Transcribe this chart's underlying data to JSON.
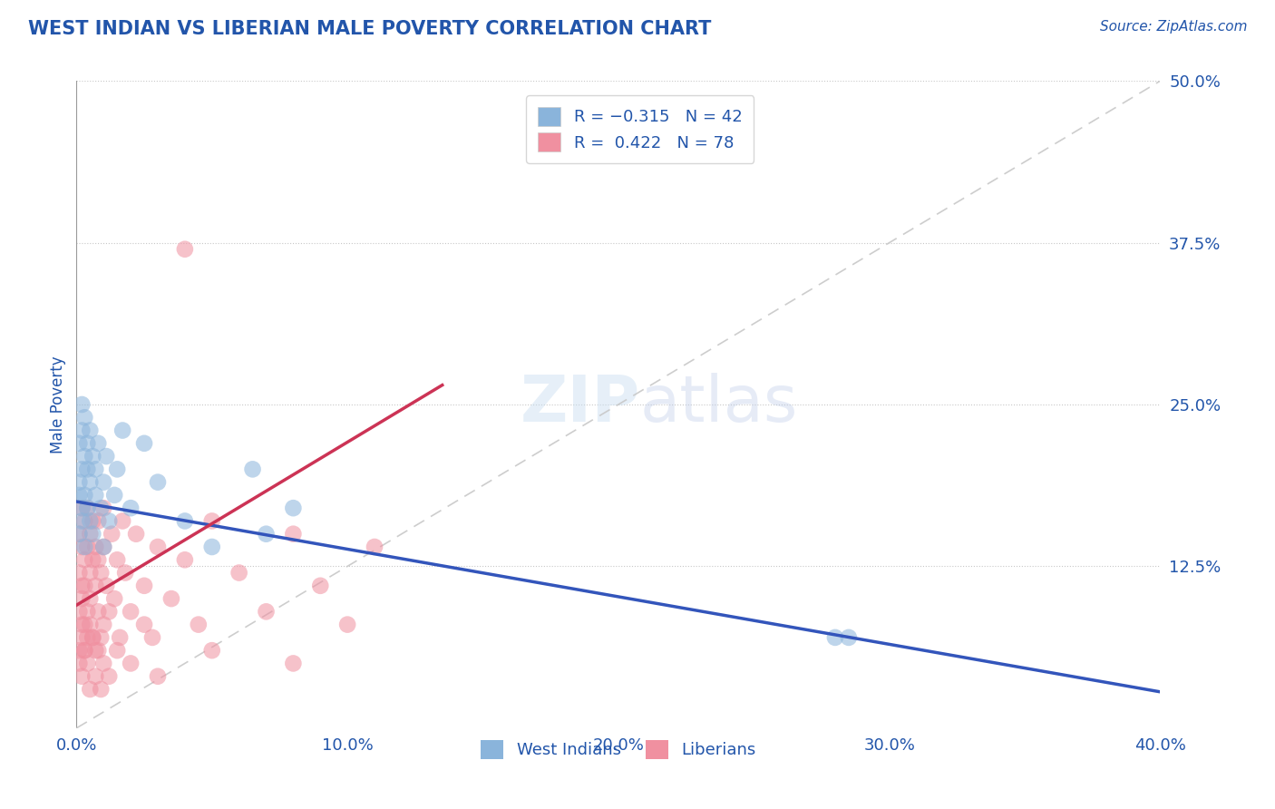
{
  "title": "WEST INDIAN VS LIBERIAN MALE POVERTY CORRELATION CHART",
  "source": "Source: ZipAtlas.com",
  "ylabel": "Male Poverty",
  "xlim": [
    0.0,
    0.4
  ],
  "ylim": [
    0.0,
    0.5
  ],
  "xticks": [
    0.0,
    0.1,
    0.2,
    0.3,
    0.4
  ],
  "xticklabels": [
    "0.0%",
    "10.0%",
    "20.0%",
    "30.0%",
    "40.0%"
  ],
  "yticks": [
    0.0,
    0.125,
    0.25,
    0.375,
    0.5
  ],
  "yticklabels": [
    "",
    "12.5%",
    "25.0%",
    "37.5%",
    "50.0%"
  ],
  "west_indian_color": "#8ab4db",
  "liberian_color": "#f090a0",
  "west_indian_line_color": "#3355bb",
  "liberian_line_color": "#cc3355",
  "ref_line_color": "#c8c8c8",
  "background_color": "#ffffff",
  "grid_color": "#c8c8c8",
  "title_color": "#2255aa",
  "axis_color": "#2255aa",
  "wi_line_x0": 0.0,
  "wi_line_y0": 0.175,
  "wi_line_x1": 0.4,
  "wi_line_y1": 0.028,
  "lib_line_x0": 0.0,
  "lib_line_y0": 0.095,
  "lib_line_x1": 0.135,
  "lib_line_y1": 0.265,
  "west_indians_x": [
    0.001,
    0.001,
    0.001,
    0.001,
    0.002,
    0.002,
    0.002,
    0.002,
    0.002,
    0.003,
    0.003,
    0.003,
    0.003,
    0.004,
    0.004,
    0.004,
    0.005,
    0.005,
    0.005,
    0.006,
    0.006,
    0.007,
    0.007,
    0.008,
    0.009,
    0.01,
    0.01,
    0.011,
    0.012,
    0.014,
    0.015,
    0.017,
    0.02,
    0.025,
    0.03,
    0.04,
    0.05,
    0.065,
    0.28,
    0.285,
    0.07,
    0.08
  ],
  "west_indians_y": [
    0.18,
    0.15,
    0.22,
    0.19,
    0.17,
    0.2,
    0.23,
    0.16,
    0.25,
    0.21,
    0.18,
    0.24,
    0.14,
    0.2,
    0.17,
    0.22,
    0.19,
    0.23,
    0.16,
    0.21,
    0.15,
    0.18,
    0.2,
    0.22,
    0.17,
    0.19,
    0.14,
    0.21,
    0.16,
    0.18,
    0.2,
    0.23,
    0.17,
    0.22,
    0.19,
    0.16,
    0.14,
    0.2,
    0.07,
    0.07,
    0.15,
    0.17
  ],
  "liberians_x": [
    0.001,
    0.001,
    0.001,
    0.001,
    0.002,
    0.002,
    0.002,
    0.002,
    0.002,
    0.002,
    0.003,
    0.003,
    0.003,
    0.003,
    0.003,
    0.004,
    0.004,
    0.004,
    0.004,
    0.005,
    0.005,
    0.005,
    0.005,
    0.006,
    0.006,
    0.006,
    0.007,
    0.007,
    0.007,
    0.008,
    0.008,
    0.008,
    0.009,
    0.009,
    0.01,
    0.01,
    0.01,
    0.011,
    0.012,
    0.013,
    0.014,
    0.015,
    0.016,
    0.017,
    0.018,
    0.02,
    0.022,
    0.025,
    0.028,
    0.03,
    0.035,
    0.04,
    0.045,
    0.05,
    0.06,
    0.07,
    0.08,
    0.09,
    0.1,
    0.11,
    0.001,
    0.002,
    0.003,
    0.004,
    0.005,
    0.006,
    0.007,
    0.008,
    0.009,
    0.01,
    0.012,
    0.015,
    0.02,
    0.025,
    0.03,
    0.04,
    0.05,
    0.08
  ],
  "liberians_y": [
    0.12,
    0.09,
    0.06,
    0.15,
    0.11,
    0.08,
    0.14,
    0.07,
    0.17,
    0.1,
    0.13,
    0.08,
    0.16,
    0.06,
    0.11,
    0.14,
    0.09,
    0.17,
    0.07,
    0.12,
    0.15,
    0.08,
    0.1,
    0.13,
    0.07,
    0.16,
    0.11,
    0.14,
    0.06,
    0.13,
    0.09,
    0.16,
    0.12,
    0.07,
    0.14,
    0.08,
    0.17,
    0.11,
    0.09,
    0.15,
    0.1,
    0.13,
    0.07,
    0.16,
    0.12,
    0.09,
    0.15,
    0.11,
    0.07,
    0.14,
    0.1,
    0.13,
    0.08,
    0.16,
    0.12,
    0.09,
    0.15,
    0.11,
    0.08,
    0.14,
    0.05,
    0.04,
    0.06,
    0.05,
    0.03,
    0.07,
    0.04,
    0.06,
    0.03,
    0.05,
    0.04,
    0.06,
    0.05,
    0.08,
    0.04,
    0.37,
    0.06,
    0.05
  ]
}
